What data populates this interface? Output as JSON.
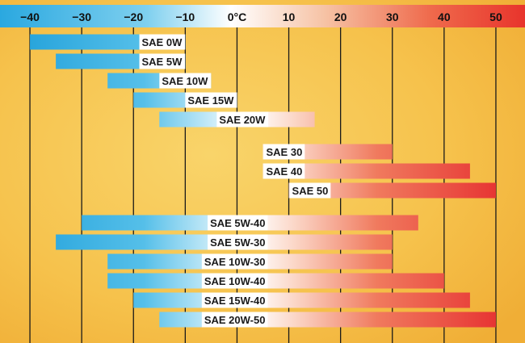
{
  "chart_data": {
    "type": "bar",
    "subtype": "range",
    "title": "",
    "xlabel": "",
    "ylabel": "",
    "xlim": [
      -45,
      55
    ],
    "ticks": [
      {
        "value": -40,
        "label": "−40"
      },
      {
        "value": -30,
        "label": "−30"
      },
      {
        "value": -20,
        "label": "−20"
      },
      {
        "value": -10,
        "label": "−10"
      },
      {
        "value": 0,
        "label": "0°C"
      },
      {
        "value": 10,
        "label": "10"
      },
      {
        "value": 20,
        "label": "20"
      },
      {
        "value": 30,
        "label": "30"
      },
      {
        "value": 40,
        "label": "40"
      },
      {
        "value": 50,
        "label": "50"
      }
    ],
    "grid": true,
    "colors": {
      "cold": "#2aa8e0",
      "hot": "#e8342c",
      "background": "#f5c04a",
      "axis_bar_hot": "#e8342c",
      "axis_bar_cold": "#2aa8e0"
    },
    "bars": [
      {
        "label": "SAE 0W",
        "min": -40,
        "max": -10
      },
      {
        "label": "SAE 5W",
        "min": -35,
        "max": -10
      },
      {
        "label": "SAE 10W",
        "min": -25,
        "max": -5
      },
      {
        "label": "SAE 15W",
        "min": -20,
        "max": 0
      },
      {
        "label": "SAE 20W",
        "min": -15,
        "max": 15
      },
      {
        "label": "SAE 30",
        "min": 5,
        "max": 30
      },
      {
        "label": "SAE 40",
        "min": 5,
        "max": 45
      },
      {
        "label": "SAE 50",
        "min": 10,
        "max": 50
      },
      {
        "label": "SAE 5W-40",
        "min": -30,
        "max": 35
      },
      {
        "label": "SAE 5W-30",
        "min": -35,
        "max": 30
      },
      {
        "label": "SAE 10W-30",
        "min": -25,
        "max": 30
      },
      {
        "label": "SAE 10W-40",
        "min": -25,
        "max": 40
      },
      {
        "label": "SAE 15W-40",
        "min": -20,
        "max": 45
      },
      {
        "label": "SAE 20W-50",
        "min": -15,
        "max": 50
      }
    ]
  }
}
